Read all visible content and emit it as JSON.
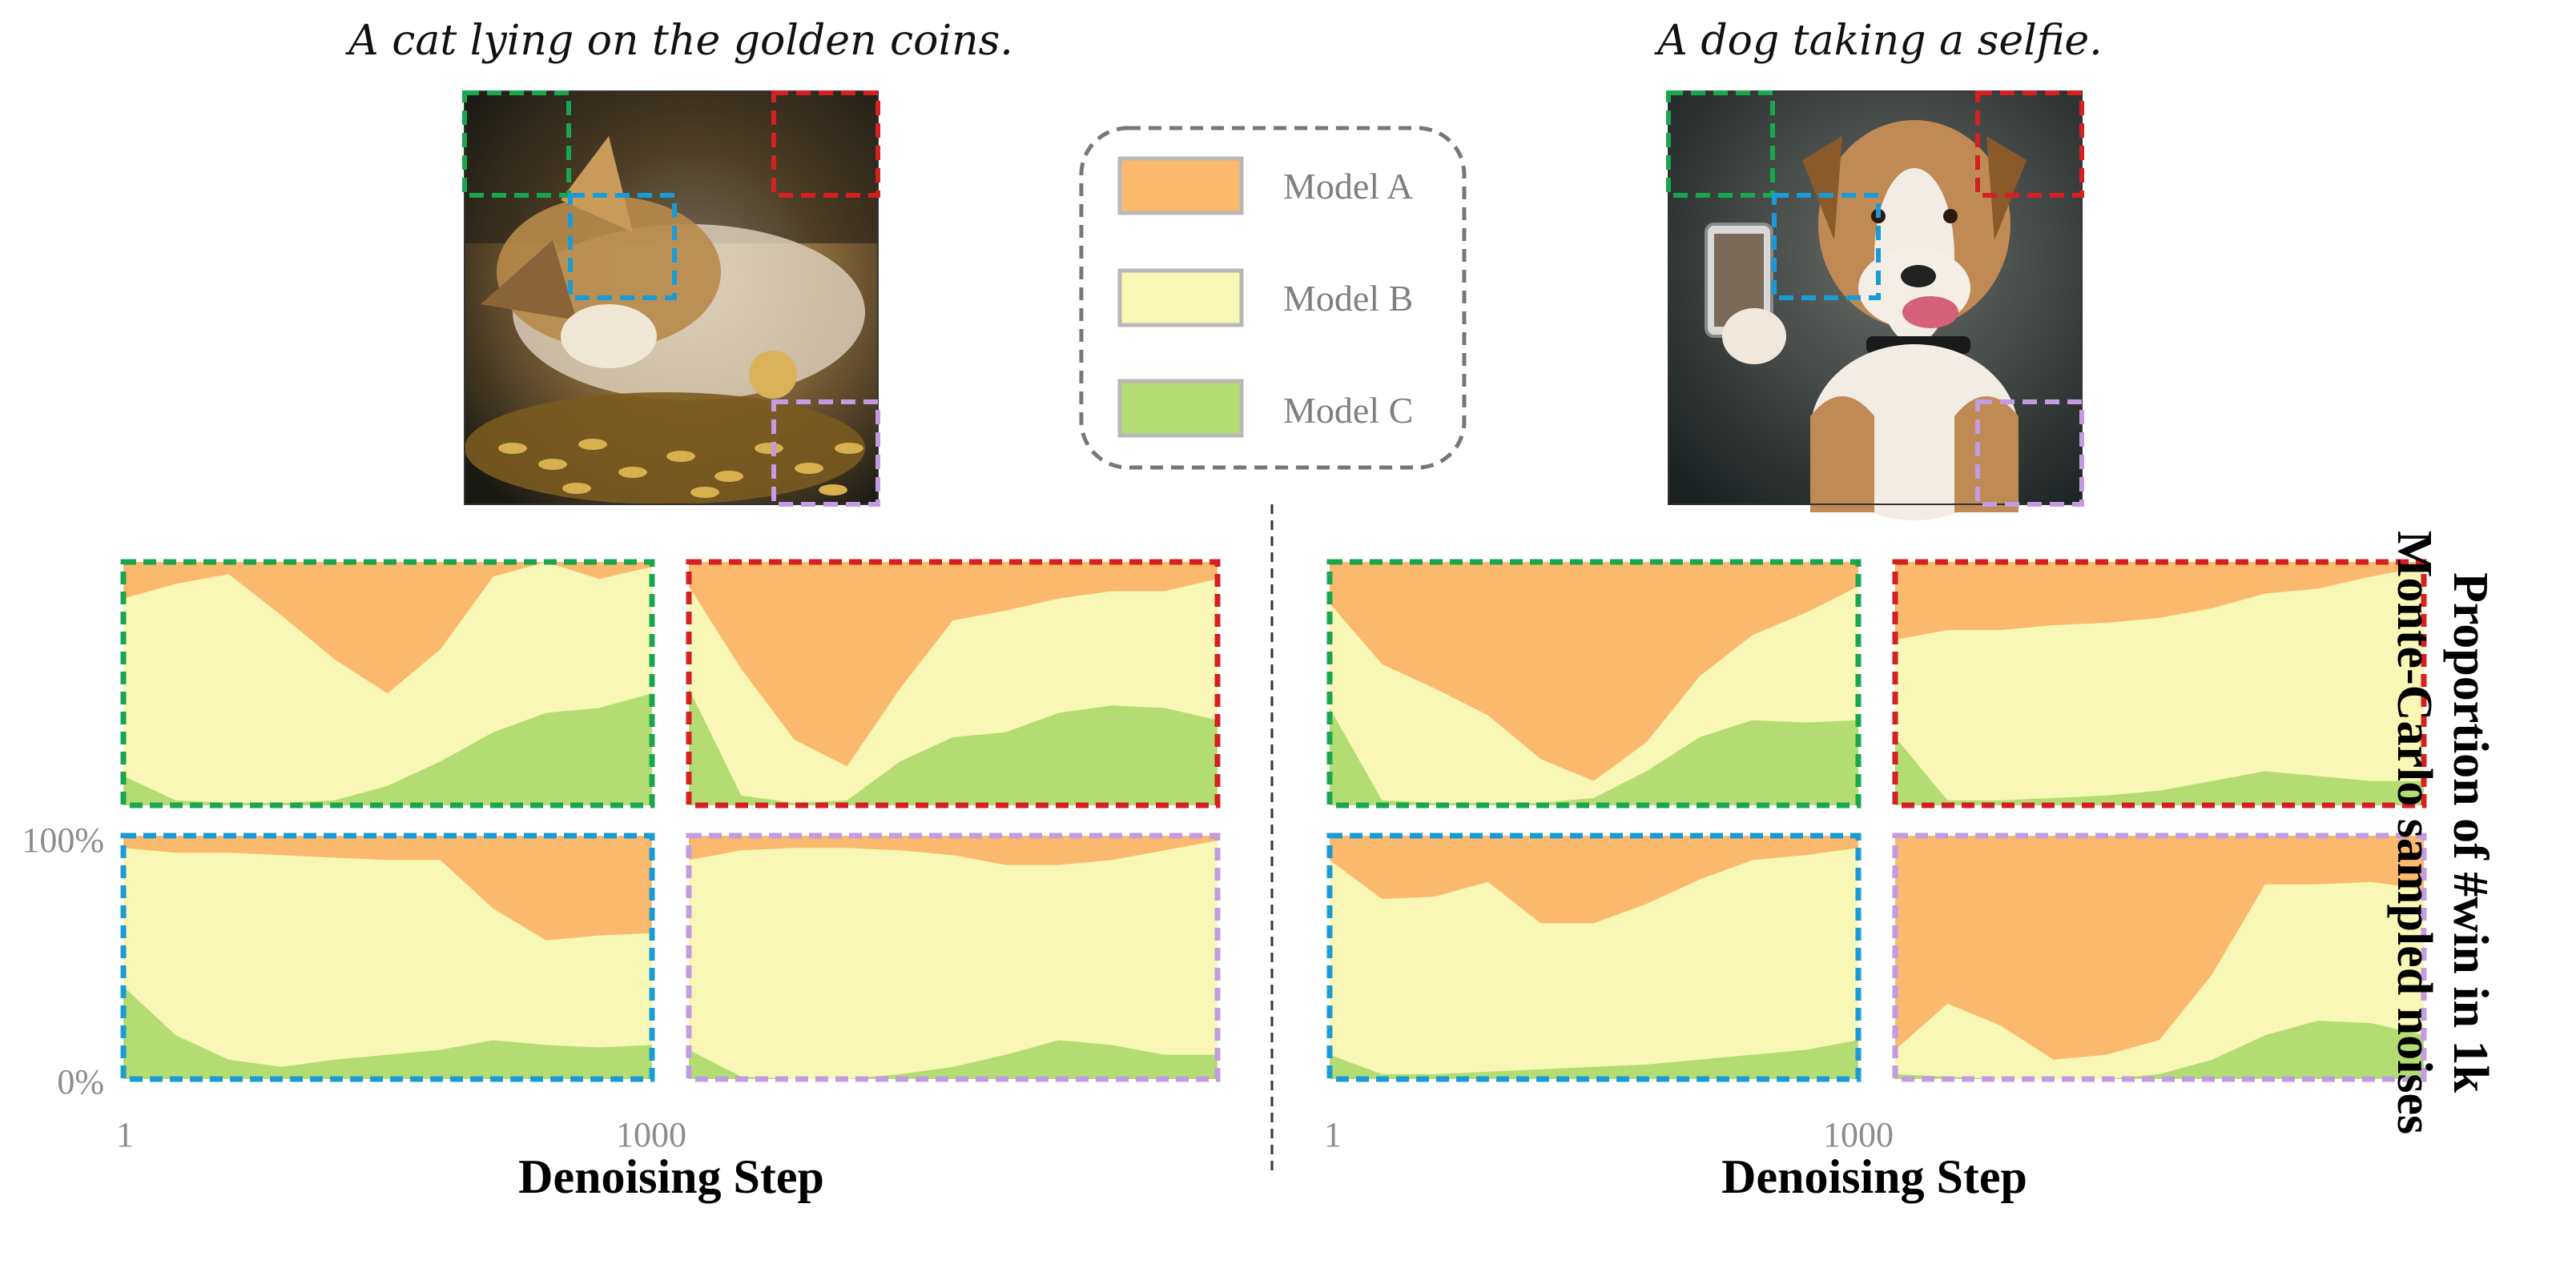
{
  "captions": {
    "left": "A cat lying on the golden coins.",
    "right": "A dog taking a selfie."
  },
  "colors": {
    "model_a": "#fbb96d",
    "model_b": "#f8f7b6",
    "model_c": "#b3dd72",
    "green_box": "#1aa64e",
    "red_box": "#d42020",
    "blue_box": "#1b9bd6",
    "purple_box": "#c39be0"
  },
  "legend": {
    "items": [
      {
        "label": "Model A"
      },
      {
        "label": "Model B"
      },
      {
        "label": "Model C"
      }
    ]
  },
  "axes": {
    "x_tick_start": "1",
    "x_tick_end": "1000",
    "y_tick_top": "100%",
    "y_tick_bottom": "0%",
    "xlabel": "Denoising Step",
    "ylabel_line1": "Proportion of #win in 1k",
    "ylabel_line2": "Monte-Carlo sampled noises"
  },
  "chart_data": [
    {
      "type": "area",
      "panel": "cat-green",
      "group": "left",
      "box": "green",
      "x": [
        1,
        100,
        200,
        300,
        400,
        500,
        600,
        700,
        800,
        900,
        1000
      ],
      "series": [
        {
          "name": "Model C",
          "values": [
            12,
            2,
            1,
            1,
            2,
            8,
            18,
            30,
            38,
            40,
            46
          ]
        },
        {
          "name": "Model B",
          "values": [
            73,
            89,
            94,
            77,
            58,
            38,
            46,
            64,
            73,
            53,
            52
          ]
        },
        {
          "name": "Model A",
          "values": [
            15,
            9,
            5,
            22,
            40,
            54,
            36,
            6,
            -11,
            7,
            2
          ]
        }
      ],
      "ylim": [
        0,
        100
      ]
    },
    {
      "type": "area",
      "panel": "cat-red",
      "group": "left",
      "box": "red",
      "x": [
        1,
        100,
        200,
        300,
        400,
        500,
        600,
        700,
        800,
        900,
        1000
      ],
      "series": [
        {
          "name": "Model C",
          "values": [
            48,
            4,
            1,
            2,
            18,
            28,
            30,
            38,
            41,
            40,
            35
          ]
        },
        {
          "name": "Model B",
          "values": [
            42,
            52,
            26,
            14,
            30,
            48,
            50,
            47,
            47,
            48,
            58
          ]
        },
        {
          "name": "Model A",
          "values": [
            10,
            44,
            73,
            84,
            52,
            24,
            20,
            15,
            12,
            12,
            7
          ]
        }
      ],
      "ylim": [
        0,
        100
      ]
    },
    {
      "type": "area",
      "panel": "cat-blue",
      "group": "left",
      "box": "blue",
      "x": [
        1,
        100,
        200,
        300,
        400,
        500,
        600,
        700,
        800,
        900,
        1000
      ],
      "series": [
        {
          "name": "Model C",
          "values": [
            38,
            18,
            8,
            5,
            8,
            10,
            12,
            16,
            14,
            13,
            14
          ]
        },
        {
          "name": "Model B",
          "values": [
            57,
            75,
            85,
            87,
            83,
            80,
            78,
            54,
            43,
            46,
            46
          ]
        },
        {
          "name": "Model A",
          "values": [
            5,
            7,
            7,
            8,
            9,
            10,
            10,
            30,
            43,
            41,
            40
          ]
        }
      ],
      "ylim": [
        0,
        100
      ]
    },
    {
      "type": "area",
      "panel": "cat-purple",
      "group": "left",
      "box": "purple",
      "x": [
        1,
        100,
        200,
        300,
        400,
        500,
        600,
        700,
        800,
        900,
        1000
      ],
      "series": [
        {
          "name": "Model C",
          "values": [
            12,
            1,
            0,
            0,
            2,
            5,
            10,
            16,
            14,
            10,
            10
          ]
        },
        {
          "name": "Model B",
          "values": [
            78,
            93,
            95,
            95,
            92,
            87,
            78,
            72,
            76,
            84,
            88
          ]
        },
        {
          "name": "Model A",
          "values": [
            10,
            6,
            5,
            5,
            6,
            8,
            12,
            12,
            10,
            6,
            2
          ]
        }
      ],
      "ylim": [
        0,
        100
      ]
    },
    {
      "type": "area",
      "panel": "dog-green",
      "group": "right",
      "box": "green",
      "x": [
        1,
        100,
        200,
        300,
        400,
        500,
        600,
        700,
        800,
        900,
        1000
      ],
      "series": [
        {
          "name": "Model C",
          "values": [
            40,
            2,
            1,
            1,
            1,
            3,
            14,
            28,
            35,
            34,
            35
          ]
        },
        {
          "name": "Model B",
          "values": [
            43,
            56,
            47,
            36,
            18,
            7,
            12,
            25,
            35,
            45,
            55
          ]
        },
        {
          "name": "Model A",
          "values": [
            17,
            42,
            52,
            63,
            81,
            90,
            74,
            47,
            30,
            21,
            10
          ]
        }
      ],
      "ylim": [
        0,
        100
      ]
    },
    {
      "type": "area",
      "panel": "dog-red",
      "group": "right",
      "box": "red",
      "x": [
        1,
        100,
        200,
        300,
        400,
        500,
        600,
        700,
        800,
        900,
        1000
      ],
      "series": [
        {
          "name": "Model C",
          "values": [
            28,
            2,
            2,
            3,
            4,
            6,
            10,
            14,
            12,
            10,
            10
          ]
        },
        {
          "name": "Model B",
          "values": [
            40,
            70,
            70,
            71,
            71,
            71,
            71,
            73,
            77,
            84,
            88
          ]
        },
        {
          "name": "Model A",
          "values": [
            32,
            28,
            28,
            26,
            25,
            23,
            19,
            13,
            11,
            6,
            2
          ]
        }
      ],
      "ylim": [
        0,
        100
      ]
    },
    {
      "type": "area",
      "panel": "dog-blue",
      "group": "right",
      "box": "blue",
      "x": [
        1,
        100,
        200,
        300,
        400,
        500,
        600,
        700,
        800,
        900,
        1000
      ],
      "series": [
        {
          "name": "Model C",
          "values": [
            10,
            2,
            2,
            3,
            4,
            5,
            6,
            8,
            10,
            12,
            16
          ]
        },
        {
          "name": "Model B",
          "values": [
            80,
            72,
            73,
            78,
            60,
            59,
            66,
            74,
            80,
            80,
            79
          ]
        },
        {
          "name": "Model A",
          "values": [
            10,
            26,
            25,
            19,
            36,
            36,
            28,
            18,
            10,
            8,
            5
          ]
        }
      ],
      "ylim": [
        0,
        100
      ]
    },
    {
      "type": "area",
      "panel": "dog-purple",
      "group": "right",
      "box": "purple",
      "x": [
        1,
        100,
        200,
        300,
        400,
        500,
        600,
        700,
        800,
        900,
        1000
      ],
      "series": [
        {
          "name": "Model C",
          "values": [
            2,
            1,
            0,
            0,
            0,
            2,
            8,
            18,
            24,
            23,
            18
          ]
        },
        {
          "name": "Model B",
          "values": [
            10,
            30,
            22,
            8,
            10,
            14,
            35,
            62,
            56,
            58,
            60
          ]
        },
        {
          "name": "Model A",
          "values": [
            88,
            69,
            78,
            92,
            90,
            84,
            57,
            20,
            20,
            19,
            22
          ]
        }
      ],
      "ylim": [
        0,
        100
      ]
    }
  ]
}
